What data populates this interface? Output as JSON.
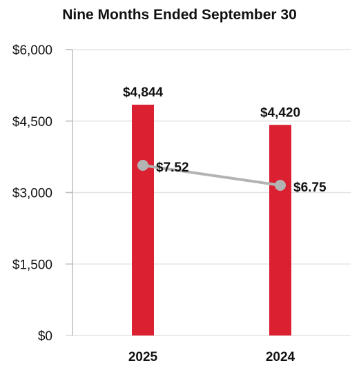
{
  "chart_data": {
    "type": "bar",
    "title": "Nine Months Ended September 30",
    "categories": [
      "2025",
      "2024"
    ],
    "series": [
      {
        "type": "bar",
        "values": [
          4844,
          4420
        ],
        "labels": [
          "$4,844",
          "$4,420"
        ],
        "color": "#DA2031"
      },
      {
        "type": "line",
        "values": [
          7.52,
          6.75
        ],
        "labels": [
          "$7.52",
          "$6.75"
        ],
        "color": "#B3B3B3"
      }
    ],
    "ylim": [
      0,
      6000
    ],
    "yticks": [
      0,
      1500,
      3000,
      4500,
      6000
    ],
    "ytick_labels": [
      "$0",
      "$1,500",
      "$3,000",
      "$4,500",
      "$6,000"
    ],
    "grid": true,
    "xlabel": "",
    "ylabel": ""
  }
}
